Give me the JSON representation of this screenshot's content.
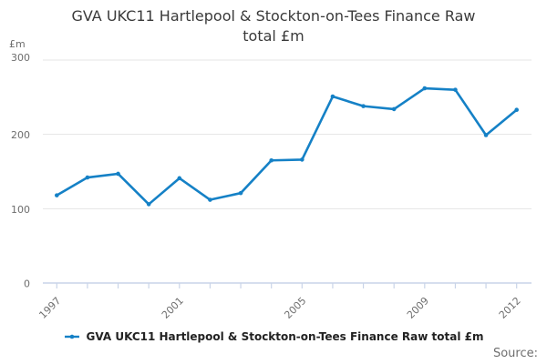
{
  "title": {
    "line1": "GVA UKC11 Hartlepool & Stockton-on-Tees Finance Raw",
    "line2": "total £m"
  },
  "y_axis": {
    "unit": "£m",
    "ticks": [
      0,
      100,
      200,
      300
    ]
  },
  "x_axis": {
    "labels": [
      "1997",
      "2001",
      "2005",
      "2009",
      "2012"
    ]
  },
  "chart_data": {
    "type": "line",
    "title": "GVA UKC11 Hartlepool & Stockton-on-Tees Finance Raw total £m",
    "x": [
      1997,
      1998,
      1999,
      2000,
      2001,
      2002,
      2003,
      2004,
      2005,
      2006,
      2007,
      2008,
      2009,
      2010,
      2011,
      2012
    ],
    "series": [
      {
        "name": "GVA UKC11 Hartlepool & Stockton-on-Tees Finance Raw total £m",
        "values": [
          118,
          142,
          147,
          106,
          141,
          112,
          121,
          165,
          166,
          251,
          238,
          234,
          262,
          260,
          199,
          233
        ],
        "color": "#1581c6"
      }
    ],
    "ylabel": "£m",
    "ylim": [
      0,
      300
    ],
    "grid": true,
    "legend_position": "bottom"
  },
  "legend": {
    "label": "GVA UKC11 Hartlepool & Stockton-on-Tees Finance Raw total £m"
  },
  "footer": {
    "source_label": "Source:"
  },
  "colors": {
    "line": "#1581c6",
    "axis": "#c9d4e8",
    "grid": "#e5e5e5",
    "title_text": "#3a3a3a",
    "tick_text": "#6e6e6e"
  }
}
